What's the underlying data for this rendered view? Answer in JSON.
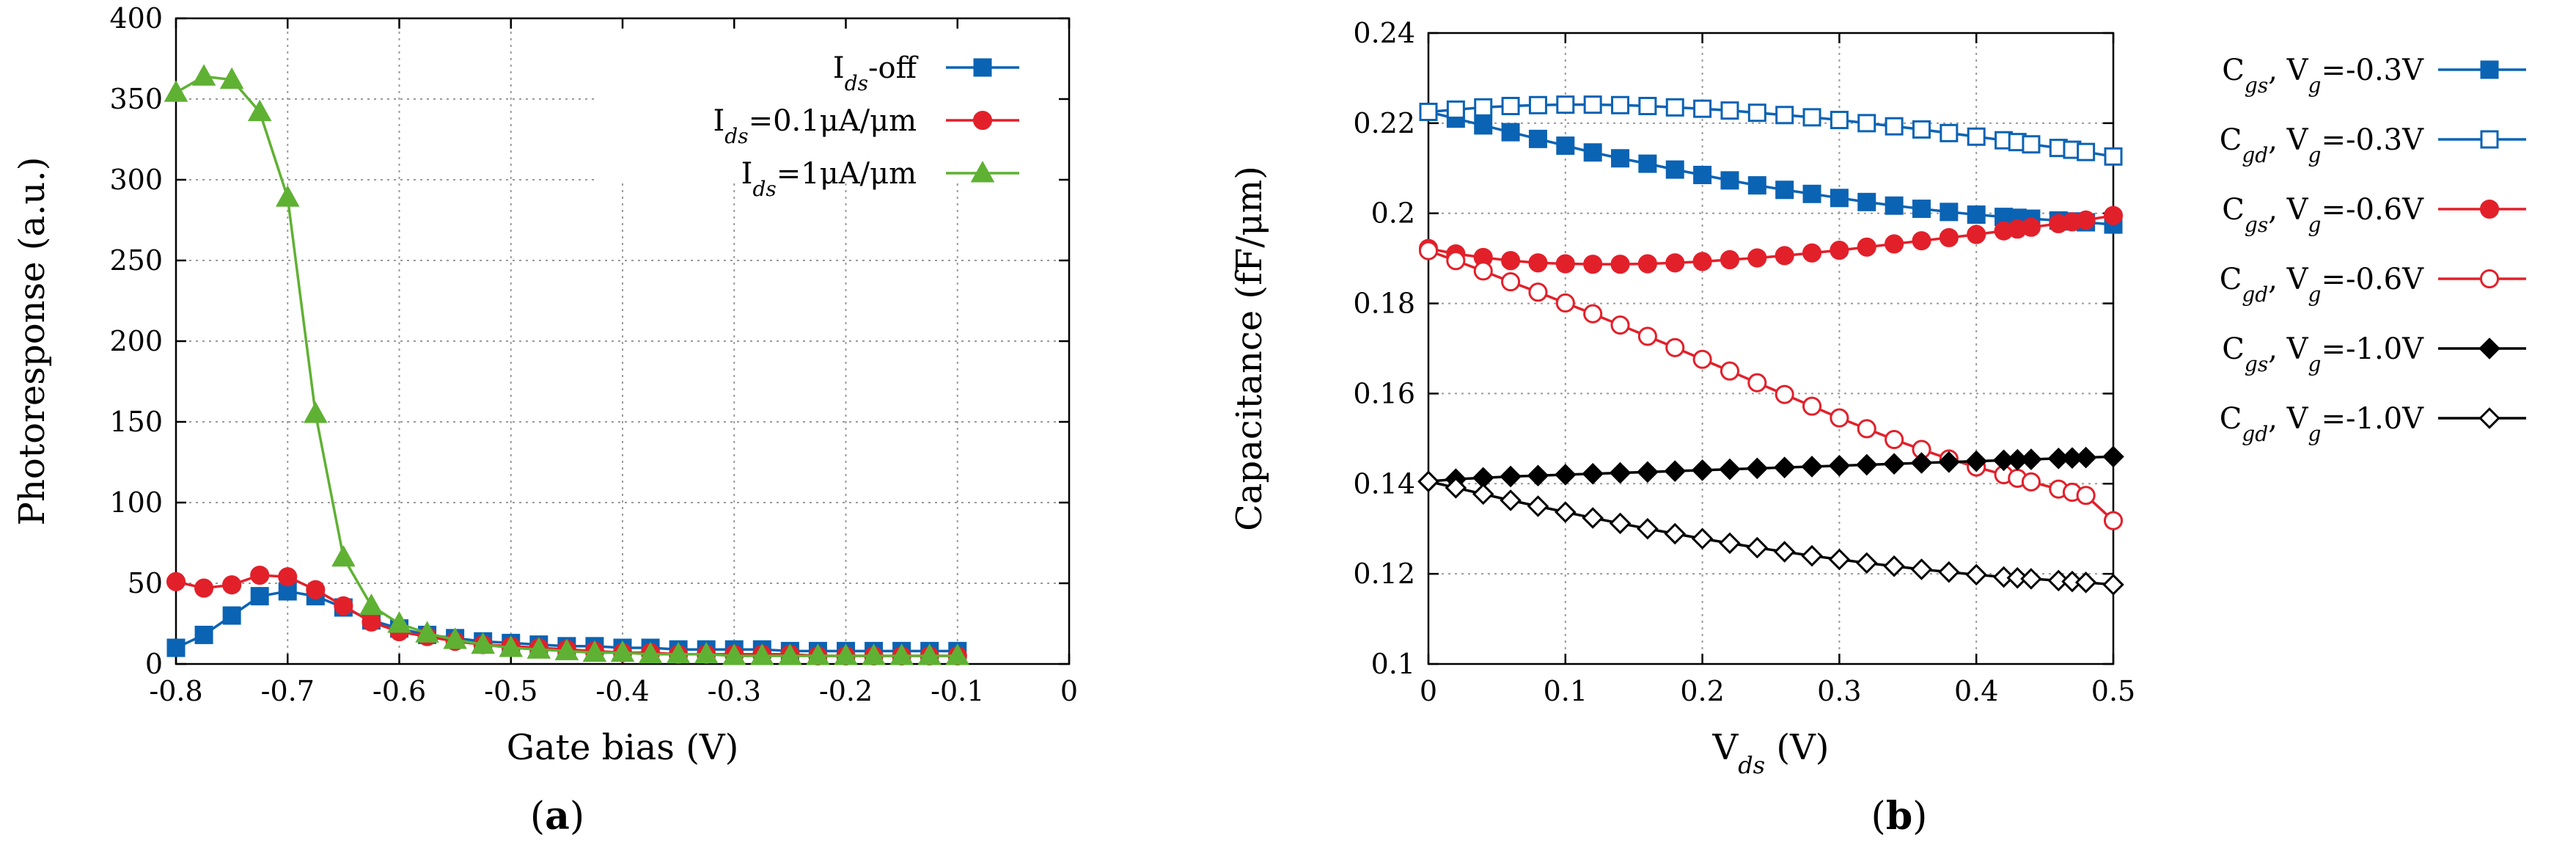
{
  "colors": {
    "blue": "#0b63b4",
    "red": "#e2202a",
    "green": "#5fb133",
    "black": "#000000",
    "grid": "#9a9a9a"
  },
  "chart_data": [
    {
      "type": "line",
      "panel_label": "(a)",
      "panel_letter": "a",
      "xlabel": "Gate bias (V)",
      "ylabel": "Photoresponse (a.u.)",
      "xlim": [
        -0.8,
        0
      ],
      "ylim": [
        0,
        400
      ],
      "xticks": [
        -0.8,
        -0.7,
        -0.6,
        -0.5,
        -0.4,
        -0.3,
        -0.2,
        -0.1,
        0
      ],
      "xtick_labels": [
        "-0.8",
        "-0.7",
        "-0.6",
        "-0.5",
        "-0.4",
        "-0.3",
        "-0.2",
        "-0.1",
        "0"
      ],
      "yticks": [
        0,
        50,
        100,
        150,
        200,
        250,
        300,
        350,
        400
      ],
      "ytick_labels": [
        "0",
        "50",
        "100",
        "150",
        "200",
        "250",
        "300",
        "350",
        "400"
      ],
      "grid": true,
      "legend_position": "top-right",
      "x": [
        -0.8,
        -0.775,
        -0.75,
        -0.725,
        -0.7,
        -0.675,
        -0.65,
        -0.625,
        -0.6,
        -0.575,
        -0.55,
        -0.525,
        -0.5,
        -0.475,
        -0.45,
        -0.425,
        -0.4,
        -0.375,
        -0.35,
        -0.325,
        -0.3,
        -0.275,
        -0.25,
        -0.225,
        -0.2,
        -0.175,
        -0.15,
        -0.125,
        -0.1
      ],
      "series": [
        {
          "name": "I_ds-off",
          "legend_main": "I",
          "legend_sub": "ds",
          "legend_tail": "-off",
          "color": "#0b63b4",
          "marker": "square-filled",
          "values": [
            10,
            18,
            30,
            42,
            45,
            42,
            35,
            27,
            22,
            18,
            16,
            14,
            13,
            12,
            11,
            11,
            10,
            10,
            9,
            9,
            9,
            9,
            8,
            8,
            8,
            8,
            8,
            8,
            8
          ]
        },
        {
          "name": "I_ds=0.1μA/μm",
          "legend_main": "I",
          "legend_sub": "ds",
          "legend_tail": "=0.1μA/μm",
          "color": "#e2202a",
          "marker": "circle-filled",
          "values": [
            51,
            47,
            49,
            55,
            54,
            46,
            36,
            26,
            20,
            17,
            14,
            12,
            11,
            10,
            9,
            8,
            7,
            7,
            6,
            6,
            6,
            6,
            6,
            5,
            5,
            5,
            5,
            5,
            5
          ]
        },
        {
          "name": "I_ds=1μA/μm",
          "legend_main": "I",
          "legend_sub": "ds",
          "legend_tail": "=1μA/μm",
          "color": "#5fb133",
          "marker": "triangle-filled",
          "values": [
            354,
            364,
            362,
            342,
            289,
            155,
            66,
            36,
            25,
            19,
            15,
            12,
            10,
            9,
            8,
            7,
            7,
            6,
            6,
            6,
            5,
            5,
            5,
            5,
            5,
            5,
            5,
            5,
            5
          ]
        }
      ]
    },
    {
      "type": "line",
      "panel_label": "(b)",
      "panel_letter": "b",
      "xlabel": "V_ds (V)",
      "xlabel_main": "V",
      "xlabel_sub": "ds",
      "xlabel_tail": " (V)",
      "ylabel": "Capacitance (fF/μm)",
      "xlim": [
        0,
        0.5
      ],
      "ylim": [
        0.1,
        0.24
      ],
      "xticks": [
        0,
        0.1,
        0.2,
        0.3,
        0.4,
        0.5
      ],
      "xtick_labels": [
        "0",
        "0.1",
        "0.2",
        "0.3",
        "0.4",
        "0.5"
      ],
      "yticks": [
        0.1,
        0.12,
        0.14,
        0.16,
        0.18,
        0.2,
        0.22,
        0.24
      ],
      "ytick_labels": [
        "0.1",
        "0.12",
        "0.14",
        "0.16",
        "0.18",
        "0.2",
        "0.22",
        "0.24"
      ],
      "grid": true,
      "legend_position": "outside-right",
      "x": [
        0,
        0.02,
        0.04,
        0.06,
        0.08,
        0.1,
        0.12,
        0.14,
        0.16,
        0.18,
        0.2,
        0.22,
        0.24,
        0.26,
        0.28,
        0.3,
        0.32,
        0.34,
        0.36,
        0.38,
        0.4,
        0.42,
        0.43,
        0.44,
        0.46,
        0.47,
        0.48,
        0.5
      ],
      "series": [
        {
          "name": "C_gs, V_g=-0.3V",
          "legend_c": "gs",
          "legend_vg": "=-0.3V",
          "color": "#0b63b4",
          "marker": "square-filled",
          "values": [
            0.2225,
            0.221,
            0.2195,
            0.218,
            0.2165,
            0.215,
            0.2135,
            0.2122,
            0.211,
            0.2097,
            0.2085,
            0.2073,
            0.2062,
            0.2052,
            0.2043,
            0.2034,
            0.2025,
            0.2017,
            0.201,
            0.2003,
            0.1997,
            0.1992,
            0.199,
            0.1988,
            0.1984,
            0.1982,
            0.198,
            0.1975
          ]
        },
        {
          "name": "C_gd, V_g=-0.3V",
          "legend_c": "gd",
          "legend_vg": "=-0.3V",
          "color": "#0b63b4",
          "marker": "square-open",
          "values": [
            0.2225,
            0.223,
            0.2235,
            0.2238,
            0.224,
            0.2241,
            0.2241,
            0.224,
            0.2238,
            0.2235,
            0.2232,
            0.2228,
            0.2223,
            0.2218,
            0.2213,
            0.2207,
            0.22,
            0.2193,
            0.2186,
            0.2178,
            0.217,
            0.2162,
            0.2158,
            0.2153,
            0.2145,
            0.2141,
            0.2136,
            0.2126
          ]
        },
        {
          "name": "C_gs, V_g=-0.6V",
          "legend_c": "gs",
          "legend_vg": "=-0.6V",
          "color": "#e2202a",
          "marker": "circle-filled",
          "values": [
            0.1922,
            0.191,
            0.1902,
            0.1895,
            0.189,
            0.1888,
            0.1887,
            0.1887,
            0.1888,
            0.189,
            0.1893,
            0.1897,
            0.1901,
            0.1906,
            0.1912,
            0.1918,
            0.1925,
            0.1932,
            0.1939,
            0.1946,
            0.1953,
            0.1961,
            0.1965,
            0.1969,
            0.1977,
            0.1981,
            0.1985,
            0.1995
          ]
        },
        {
          "name": "C_gd, V_g=-0.6V",
          "legend_c": "gd",
          "legend_vg": "=-0.6V",
          "color": "#e2202a",
          "marker": "circle-open",
          "values": [
            0.1917,
            0.1895,
            0.1872,
            0.1848,
            0.1825,
            0.1801,
            0.1777,
            0.1752,
            0.1727,
            0.1702,
            0.1676,
            0.165,
            0.1624,
            0.1598,
            0.1572,
            0.1546,
            0.1522,
            0.1498,
            0.1476,
            0.1455,
            0.1437,
            0.142,
            0.1412,
            0.1404,
            0.1388,
            0.1381,
            0.1374,
            0.1318
          ]
        },
        {
          "name": "C_gs, V_g=-1.0V",
          "legend_c": "gs",
          "legend_vg": "=-1.0V",
          "color": "#000000",
          "marker": "diamond-filled",
          "values": [
            0.1405,
            0.141,
            0.1413,
            0.1416,
            0.1418,
            0.142,
            0.1422,
            0.1424,
            0.1426,
            0.1428,
            0.143,
            0.1432,
            0.1434,
            0.1436,
            0.1438,
            0.144,
            0.1442,
            0.1444,
            0.1446,
            0.1448,
            0.145,
            0.1452,
            0.1453,
            0.1454,
            0.1456,
            0.1457,
            0.1458,
            0.146
          ]
        },
        {
          "name": "C_gd, V_g=-1.0V",
          "legend_c": "gd",
          "legend_vg": "=-1.0V",
          "color": "#000000",
          "marker": "diamond-open",
          "values": [
            0.1405,
            0.1391,
            0.1377,
            0.1363,
            0.135,
            0.1337,
            0.1324,
            0.1312,
            0.13,
            0.1289,
            0.1278,
            0.1268,
            0.1258,
            0.1249,
            0.124,
            0.1232,
            0.1224,
            0.1217,
            0.121,
            0.1204,
            0.1198,
            0.1193,
            0.1191,
            0.1189,
            0.1185,
            0.1183,
            0.1181,
            0.1176
          ]
        }
      ]
    }
  ]
}
